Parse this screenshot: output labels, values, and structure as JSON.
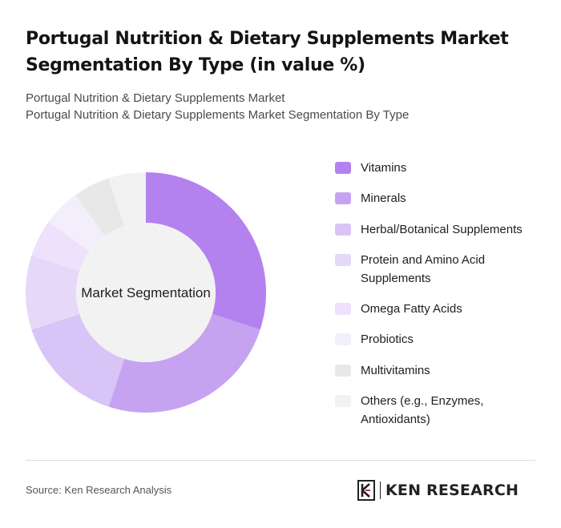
{
  "header": {
    "title": "Portugal Nutrition & Dietary Supplements Market Segmentation By Type (in value %)",
    "subtitle_line1": "Portugal Nutrition & Dietary Supplements Market",
    "subtitle_line2": "Portugal Nutrition & Dietary Supplements Market Segmentation By Type"
  },
  "chart_data": {
    "type": "pie",
    "donut": true,
    "center_label": "Market Segmentation",
    "categories": [
      "Vitamins",
      "Minerals",
      "Herbal/Botanical Supplements",
      "Protein and Amino Acid Supplements",
      "Omega Fatty Acids",
      "Probiotics",
      "Multivitamins",
      "Others (e.g., Enzymes, Antioxidants)"
    ],
    "values": [
      30,
      25,
      15,
      10,
      5,
      5,
      5,
      5
    ],
    "colors": [
      "#B482EE",
      "#C6A3F1",
      "#D9C4F7",
      "#E6D8F9",
      "#EDE1FB",
      "#F3EEFC",
      "#E8E8E8",
      "#F2F2F2"
    ],
    "legend_position": "right"
  },
  "footer": {
    "source": "Source: Ken Research Analysis",
    "brand": "KEN RESEARCH"
  }
}
